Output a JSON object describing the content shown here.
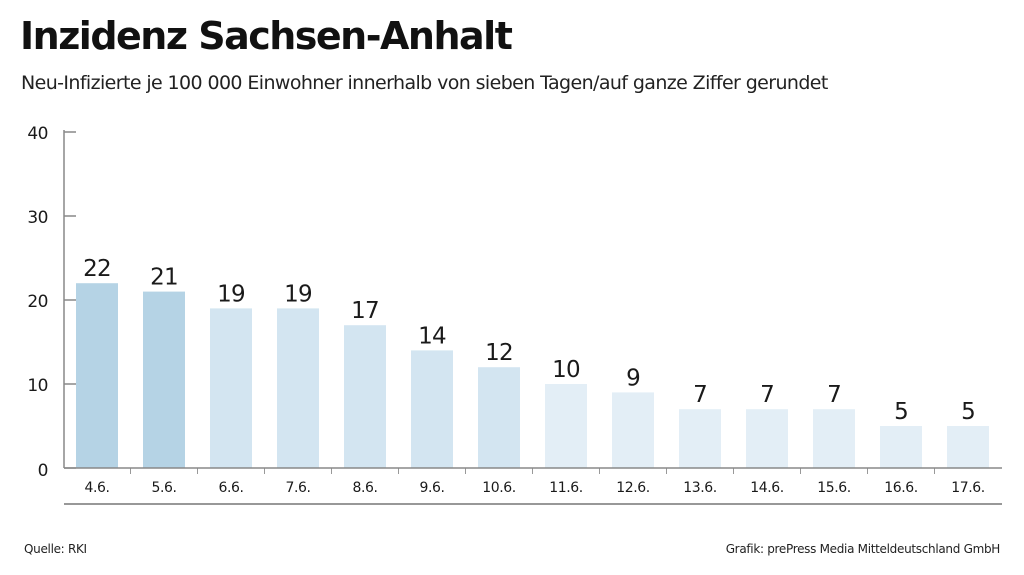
{
  "title": "Inzidenz Sachsen-Anhalt",
  "subtitle": "Neu-Infizierte je 100 000 Einwohner innerhalb von sieben Tagen/auf ganze Ziffer gerundet",
  "source": "Quelle: RKI",
  "credit": "Grafik: prePress Media Mitteldeutschland GmbH",
  "colors": {
    "bar_dark": "#b5d3e5",
    "bar_mid": "#d3e5f1",
    "bar_light": "#e3eef6",
    "axis": "#555555",
    "grid": "#cccccc",
    "text": "#1a1a1a"
  },
  "chart_data": {
    "type": "bar",
    "categories": [
      "4.6.",
      "5.6.",
      "6.6.",
      "7.6.",
      "8.6.",
      "9.6.",
      "10.6.",
      "11.6.",
      "12.6.",
      "13.6.",
      "14.6.",
      "15.6.",
      "16.6.",
      "17.6."
    ],
    "values": [
      22,
      21,
      19,
      19,
      17,
      14,
      12,
      10,
      9,
      7,
      7,
      7,
      5,
      5
    ],
    "shade": [
      "dark",
      "dark",
      "mid",
      "mid",
      "mid",
      "mid",
      "mid",
      "light",
      "light",
      "light",
      "light",
      "light",
      "light",
      "light"
    ],
    "ylim": [
      0,
      40
    ],
    "yticks": [
      0,
      10,
      20,
      30,
      40
    ],
    "xlabel": "",
    "ylabel": "",
    "grid": false,
    "data_labels": true
  }
}
